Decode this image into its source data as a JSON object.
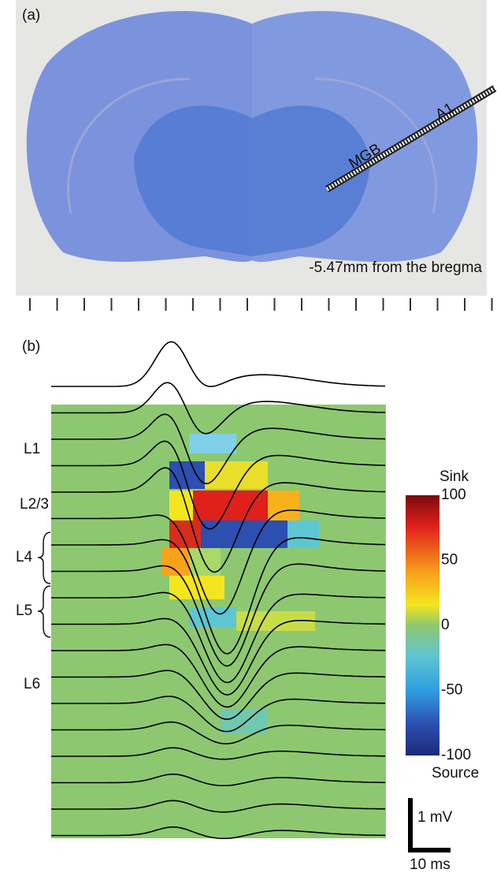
{
  "panel_a": {
    "label": "(a)",
    "probe_labels": [
      "MGB",
      "A1"
    ],
    "caption": "-5.47mm from the bregma"
  },
  "panel_b": {
    "label": "(b)",
    "layers": [
      "L1",
      "L2/3",
      "L4",
      "L5",
      "L6"
    ],
    "colorbar": {
      "top_label": "Sink",
      "bottom_label": "Source",
      "ticks": [
        100,
        50,
        0,
        -50,
        -100
      ]
    },
    "scale_bar": {
      "vertical": "1 mV",
      "horizontal": "10 ms"
    }
  }
}
